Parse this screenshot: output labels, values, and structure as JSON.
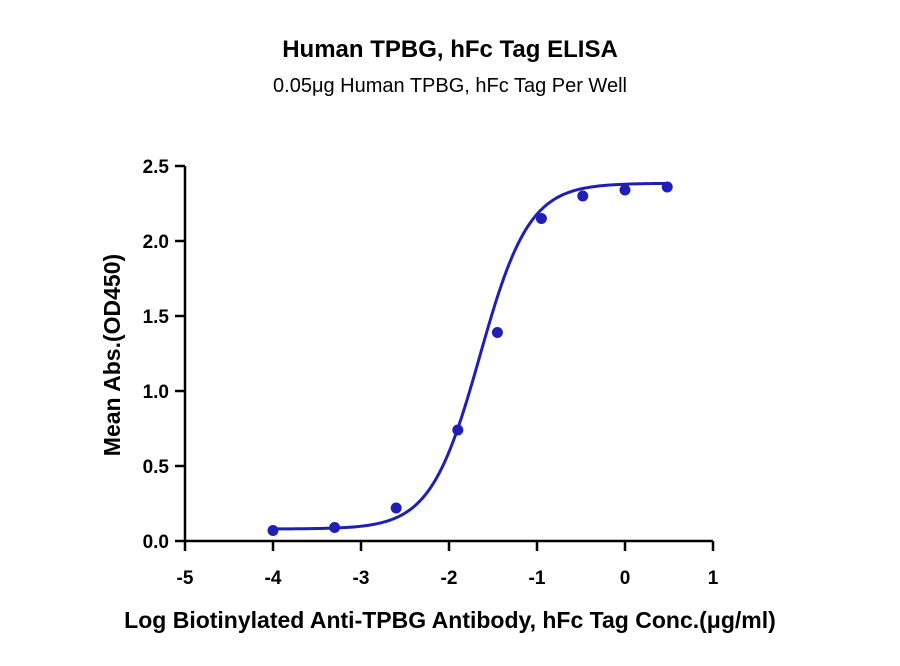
{
  "chart_data": {
    "type": "scatter",
    "title": "Human TPBG, hFc Tag ELISA",
    "subtitle": "0.05μg Human TPBG, hFc Tag Per Well",
    "xlabel": "Log Biotinylated Anti-TPBG Antibody, hFc Tag Conc.(μg/ml)",
    "ylabel": "Mean Abs.(OD450)",
    "xlim": [
      -5,
      1
    ],
    "ylim": [
      0,
      2.5
    ],
    "x_ticks": [
      "-5",
      "-4",
      "-3",
      "-2",
      "-1",
      "0",
      "1"
    ],
    "y_ticks": [
      "0.0",
      "0.5",
      "1.0",
      "1.5",
      "2.0",
      "2.5"
    ],
    "grid": false,
    "color": "#1f1fb4",
    "series": [
      {
        "x": [
          -4.0,
          -3.3,
          -2.6,
          -1.9,
          -1.45,
          -0.95,
          -0.48,
          0.0,
          0.48
        ],
        "y": [
          0.07,
          0.09,
          0.22,
          0.74,
          1.39,
          2.15,
          2.3,
          2.34,
          2.36
        ]
      }
    ],
    "fit_curve": {
      "model": "4PL",
      "bottom": 0.08,
      "top": 2.385,
      "logEC50": -1.65,
      "hill": 1.55
    }
  }
}
